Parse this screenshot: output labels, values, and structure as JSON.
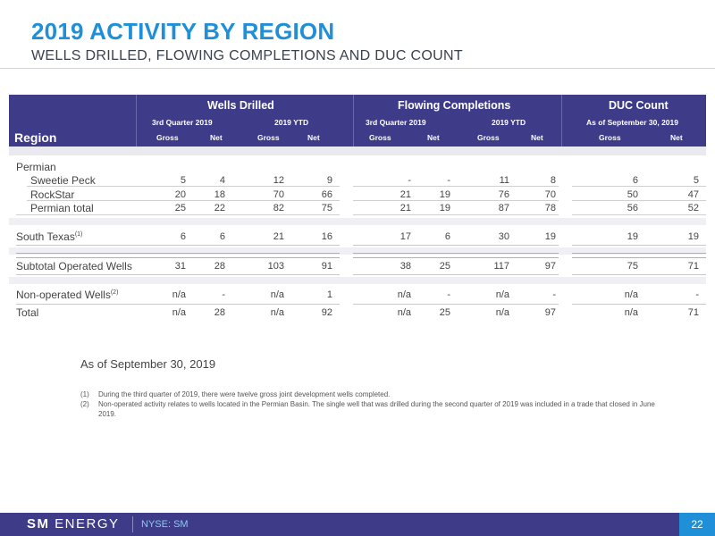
{
  "title": "2019 ACTIVITY BY REGION",
  "subtitle": "WELLS DRILLED, FLOWING COMPLETIONS AND DUC COUNT",
  "table": {
    "region_header": "Region",
    "groups": [
      "Wells Drilled",
      "Flowing Completions",
      "DUC Count"
    ],
    "subgroups": [
      "3rd Quarter 2019",
      "2019 YTD",
      "3rd Quarter 2019",
      "2019 YTD",
      "As of September 30, 2019"
    ],
    "columns": [
      "Gross",
      "Net",
      "Gross",
      "Net",
      "Gross",
      "Net",
      "Gross",
      "Net",
      "Gross",
      "Net"
    ],
    "section_permian": "Permian",
    "rows": [
      {
        "label": "Sweetie Peck",
        "sup": "",
        "values": [
          "5",
          "4",
          "12",
          "9",
          "-",
          "-",
          "11",
          "8",
          "6",
          "5"
        ]
      },
      {
        "label": "RockStar",
        "sup": "",
        "values": [
          "20",
          "18",
          "70",
          "66",
          "21",
          "19",
          "76",
          "70",
          "50",
          "47"
        ]
      },
      {
        "label": "Permian total",
        "sup": "",
        "values": [
          "25",
          "22",
          "82",
          "75",
          "21",
          "19",
          "87",
          "78",
          "56",
          "52"
        ]
      },
      {
        "label": "South Texas",
        "sup": "(1)",
        "values": [
          "6",
          "6",
          "21",
          "16",
          "17",
          "6",
          "30",
          "19",
          "19",
          "19"
        ]
      },
      {
        "label": "Subtotal Operated Wells",
        "sup": "",
        "values": [
          "31",
          "28",
          "103",
          "91",
          "38",
          "25",
          "117",
          "97",
          "75",
          "71"
        ]
      },
      {
        "label": "Non-operated Wells",
        "sup": "(2)",
        "values": [
          "n/a",
          "-",
          "n/a",
          "1",
          "n/a",
          "-",
          "n/a",
          "-",
          "n/a",
          "-"
        ]
      },
      {
        "label": "Total",
        "sup": "",
        "values": [
          "n/a",
          "28",
          "n/a",
          "92",
          "n/a",
          "25",
          "n/a",
          "97",
          "n/a",
          "71"
        ]
      }
    ]
  },
  "as_of": "As of September 30, 2019",
  "footnotes": [
    {
      "mark": "(1)",
      "text": "During the third quarter of 2019, there were twelve gross joint development wells completed."
    },
    {
      "mark": "(2)",
      "text": "Non-operated activity relates to wells located in the Permian Basin. The single well that was drilled during the second quarter of 2019 was included in a trade that closed in June 2019."
    }
  ],
  "footer": {
    "logo_bold": "SM",
    "logo_rest": "ENERGY",
    "ticker": "NYSE: SM",
    "page": "22"
  },
  "colors": {
    "title_blue": "#1f8fd8",
    "header_purple": "#3e3b88"
  }
}
